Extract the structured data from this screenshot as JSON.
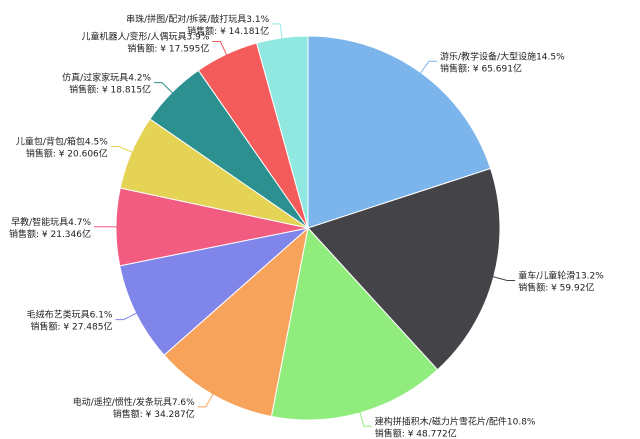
{
  "chart_data": {
    "type": "pie",
    "categories": [
      "游乐/教学设备/大型设施",
      "童车/儿童轮滑",
      "建构拼插积木/磁力片雪花片/配件",
      "电动/遥控/惯性/发条玩具",
      "毛绒布艺类玩具",
      "早教/智能玩具",
      "儿童包/背包/箱包",
      "仿真/过家家玩具",
      "儿童机器人/变形/人偶玩具",
      "串珠/拼图/配对/拆装/敲打玩具"
    ],
    "values": [
      65.691,
      59.92,
      48.772,
      34.287,
      27.485,
      21.346,
      20.606,
      18.815,
      17.595,
      14.181
    ],
    "value_labels": [
      "销售额: ¥ 65.691亿",
      "销售额: ¥ 59.92亿",
      "销售额: ¥ 48.772亿",
      "销售额: ¥ 34.287亿",
      "销售额: ¥ 27.485亿",
      "销售额: ¥ 21.346亿",
      "销售额: ¥ 20.606亿",
      "销售额: ¥ 18.815亿",
      "销售额: ¥ 17.595亿",
      "销售额: ¥ 14.181亿"
    ],
    "percents": [
      14.5,
      13.2,
      10.8,
      7.6,
      6.1,
      4.7,
      4.5,
      4.2,
      3.9,
      3.1
    ],
    "percent_labels": [
      "14.5%",
      "13.2%",
      "10.8%",
      "7.6%",
      "6.1%",
      "4.7%",
      "4.5%",
      "4.2%",
      "3.9%",
      "3.1%"
    ],
    "colors": [
      "#7cb5ec",
      "#434348",
      "#90ed7d",
      "#f7a35c",
      "#8085e9",
      "#f15c80",
      "#e4d354",
      "#2b908f",
      "#f45b5b",
      "#91e8e1"
    ]
  }
}
